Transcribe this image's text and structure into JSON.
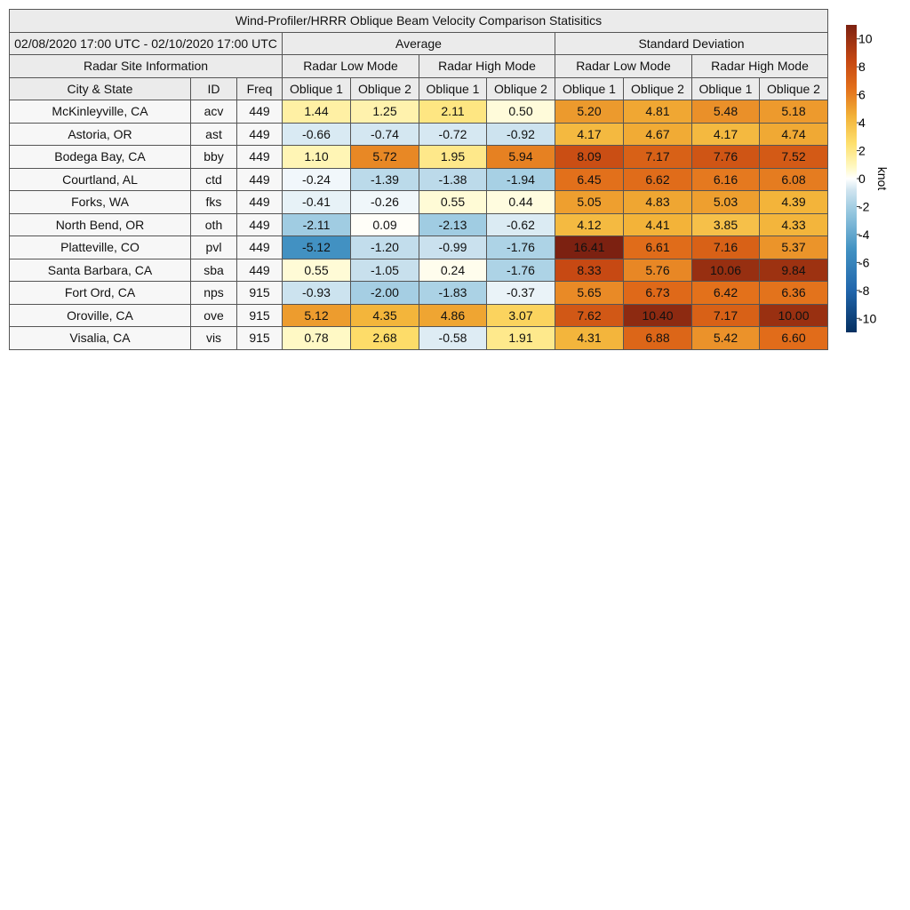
{
  "table": {
    "title": "Wind-Profiler/HRRR Oblique Beam Velocity Comparison Statisitics",
    "date_range": "02/08/2020 17:00 UTC - 02/10/2020 17:00 UTC",
    "group_average": "Average",
    "group_std": "Standard Deviation",
    "site_info_label": "Radar Site Information",
    "mode_low": "Radar Low Mode",
    "mode_high": "Radar High Mode",
    "col_city": "City & State",
    "col_id": "ID",
    "col_freq": "Freq",
    "col_oblique1": "Oblique 1",
    "col_oblique2": "Oblique 2"
  },
  "chart_data": {
    "type": "heatmap",
    "title": "Wind-Profiler/HRRR Oblique Beam Velocity Comparison Statisitics",
    "colorbar": {
      "label": "knot",
      "range": [
        -11,
        11
      ],
      "ticks": [
        10,
        8,
        6,
        4,
        2,
        0,
        -2,
        -4,
        -6,
        -8,
        -10
      ]
    },
    "columns": [
      "Average / Radar Low Mode / Oblique 1",
      "Average / Radar Low Mode / Oblique 2",
      "Average / Radar High Mode / Oblique 1",
      "Average / Radar High Mode / Oblique 2",
      "Standard Deviation / Radar Low Mode / Oblique 1",
      "Standard Deviation / Radar Low Mode / Oblique 2",
      "Standard Deviation / Radar High Mode / Oblique 1",
      "Standard Deviation / Radar High Mode / Oblique 2"
    ],
    "rows": [
      {
        "city": "McKinleyville, CA",
        "id": "acv",
        "freq": "449",
        "values": [
          "1.44",
          "1.25",
          "2.11",
          "0.50",
          "5.20",
          "4.81",
          "5.48",
          "5.18"
        ]
      },
      {
        "city": "Astoria, OR",
        "id": "ast",
        "freq": "449",
        "values": [
          "-0.66",
          "-0.74",
          "-0.72",
          "-0.92",
          "4.17",
          "4.67",
          "4.17",
          "4.74"
        ]
      },
      {
        "city": "Bodega Bay, CA",
        "id": "bby",
        "freq": "449",
        "values": [
          "1.10",
          "5.72",
          "1.95",
          "5.94",
          "8.09",
          "7.17",
          "7.76",
          "7.52"
        ]
      },
      {
        "city": "Courtland, AL",
        "id": "ctd",
        "freq": "449",
        "values": [
          "-0.24",
          "-1.39",
          "-1.38",
          "-1.94",
          "6.45",
          "6.62",
          "6.16",
          "6.08"
        ]
      },
      {
        "city": "Forks, WA",
        "id": "fks",
        "freq": "449",
        "values": [
          "-0.41",
          "-0.26",
          "0.55",
          "0.44",
          "5.05",
          "4.83",
          "5.03",
          "4.39"
        ]
      },
      {
        "city": "North Bend, OR",
        "id": "oth",
        "freq": "449",
        "values": [
          "-2.11",
          "0.09",
          "-2.13",
          "-0.62",
          "4.12",
          "4.41",
          "3.85",
          "4.33"
        ]
      },
      {
        "city": "Platteville, CO",
        "id": "pvl",
        "freq": "449",
        "values": [
          "-5.12",
          "-1.20",
          "-0.99",
          "-1.76",
          "16.41",
          "6.61",
          "7.16",
          "5.37"
        ]
      },
      {
        "city": "Santa Barbara, CA",
        "id": "sba",
        "freq": "449",
        "values": [
          "0.55",
          "-1.05",
          "0.24",
          "-1.76",
          "8.33",
          "5.76",
          "10.06",
          "9.84"
        ]
      },
      {
        "city": "Fort Ord, CA",
        "id": "nps",
        "freq": "915",
        "values": [
          "-0.93",
          "-2.00",
          "-1.83",
          "-0.37",
          "5.65",
          "6.73",
          "6.42",
          "6.36"
        ]
      },
      {
        "city": "Oroville, CA",
        "id": "ove",
        "freq": "915",
        "values": [
          "5.12",
          "4.35",
          "4.86",
          "3.07",
          "7.62",
          "10.40",
          "7.17",
          "10.00"
        ]
      },
      {
        "city": "Visalia, CA",
        "id": "vis",
        "freq": "915",
        "values": [
          "0.78",
          "2.68",
          "-0.58",
          "1.91",
          "4.31",
          "6.88",
          "5.42",
          "6.60"
        ]
      }
    ]
  }
}
